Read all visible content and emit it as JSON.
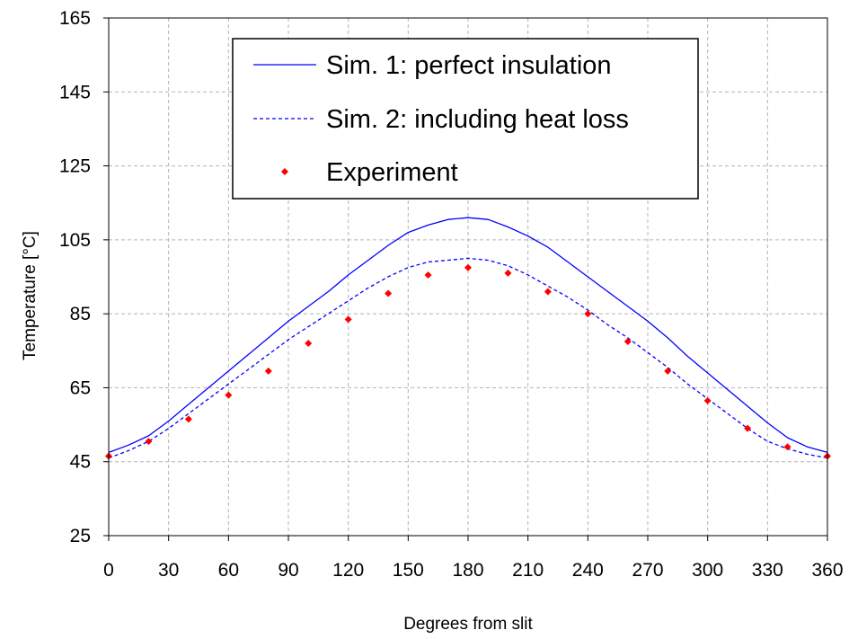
{
  "chart_data": {
    "type": "line",
    "xlabel": "Degrees from slit",
    "ylabel": "Temperature [°C]",
    "xlim": [
      0,
      360
    ],
    "ylim": [
      25,
      165
    ],
    "xticks": [
      0,
      30,
      60,
      90,
      120,
      150,
      180,
      210,
      240,
      270,
      300,
      330,
      360
    ],
    "yticks": [
      25,
      45,
      65,
      85,
      105,
      125,
      145,
      165
    ],
    "grid": true,
    "legend_position": "top-center",
    "series": [
      {
        "name": "Sim. 1: perfect insulation",
        "kind": "line",
        "style": "solid",
        "color": "#0000ff",
        "x": [
          0,
          10,
          20,
          30,
          40,
          50,
          60,
          70,
          80,
          90,
          100,
          110,
          120,
          130,
          140,
          150,
          160,
          170,
          180,
          190,
          200,
          210,
          220,
          230,
          240,
          250,
          260,
          270,
          280,
          290,
          300,
          310,
          320,
          330,
          340,
          350,
          360
        ],
        "y": [
          47.5,
          49.5,
          52,
          56,
          60.5,
          65,
          69.5,
          74,
          78.5,
          83,
          87,
          91,
          95.5,
          99.5,
          103.5,
          107,
          109,
          110.5,
          111,
          110.5,
          108.5,
          106,
          103,
          99,
          95,
          91,
          87,
          83,
          78.5,
          73.5,
          69,
          64.5,
          60,
          55.5,
          51.5,
          49,
          47.5
        ]
      },
      {
        "name": "Sim. 2: including heat loss",
        "kind": "line",
        "style": "dashed",
        "color": "#0000ff",
        "x": [
          0,
          10,
          20,
          30,
          40,
          50,
          60,
          70,
          80,
          90,
          100,
          110,
          120,
          130,
          140,
          150,
          160,
          170,
          180,
          190,
          200,
          210,
          220,
          230,
          240,
          250,
          260,
          270,
          280,
          290,
          300,
          310,
          320,
          330,
          340,
          350,
          360
        ],
        "y": [
          46,
          48,
          50.5,
          54,
          58,
          62,
          66,
          70,
          74,
          78,
          81.5,
          85,
          88.5,
          92,
          95,
          97.5,
          99,
          99.5,
          100,
          99.5,
          98,
          95.5,
          92.5,
          89.5,
          86,
          82,
          78.5,
          74.5,
          70.5,
          66,
          62,
          58,
          54,
          50.5,
          48.5,
          47,
          46
        ]
      },
      {
        "name": "Experiment",
        "kind": "scatter",
        "color": "#ff0000",
        "x": [
          0,
          20,
          40,
          60,
          80,
          100,
          120,
          140,
          160,
          180,
          200,
          220,
          240,
          260,
          280,
          300,
          320,
          340,
          360
        ],
        "y": [
          46.5,
          50.5,
          56.5,
          63,
          69.5,
          77,
          83.5,
          90.5,
          95.5,
          97.5,
          96,
          91,
          85,
          77.5,
          69.5,
          61.5,
          54,
          49,
          46.5
        ]
      }
    ]
  }
}
